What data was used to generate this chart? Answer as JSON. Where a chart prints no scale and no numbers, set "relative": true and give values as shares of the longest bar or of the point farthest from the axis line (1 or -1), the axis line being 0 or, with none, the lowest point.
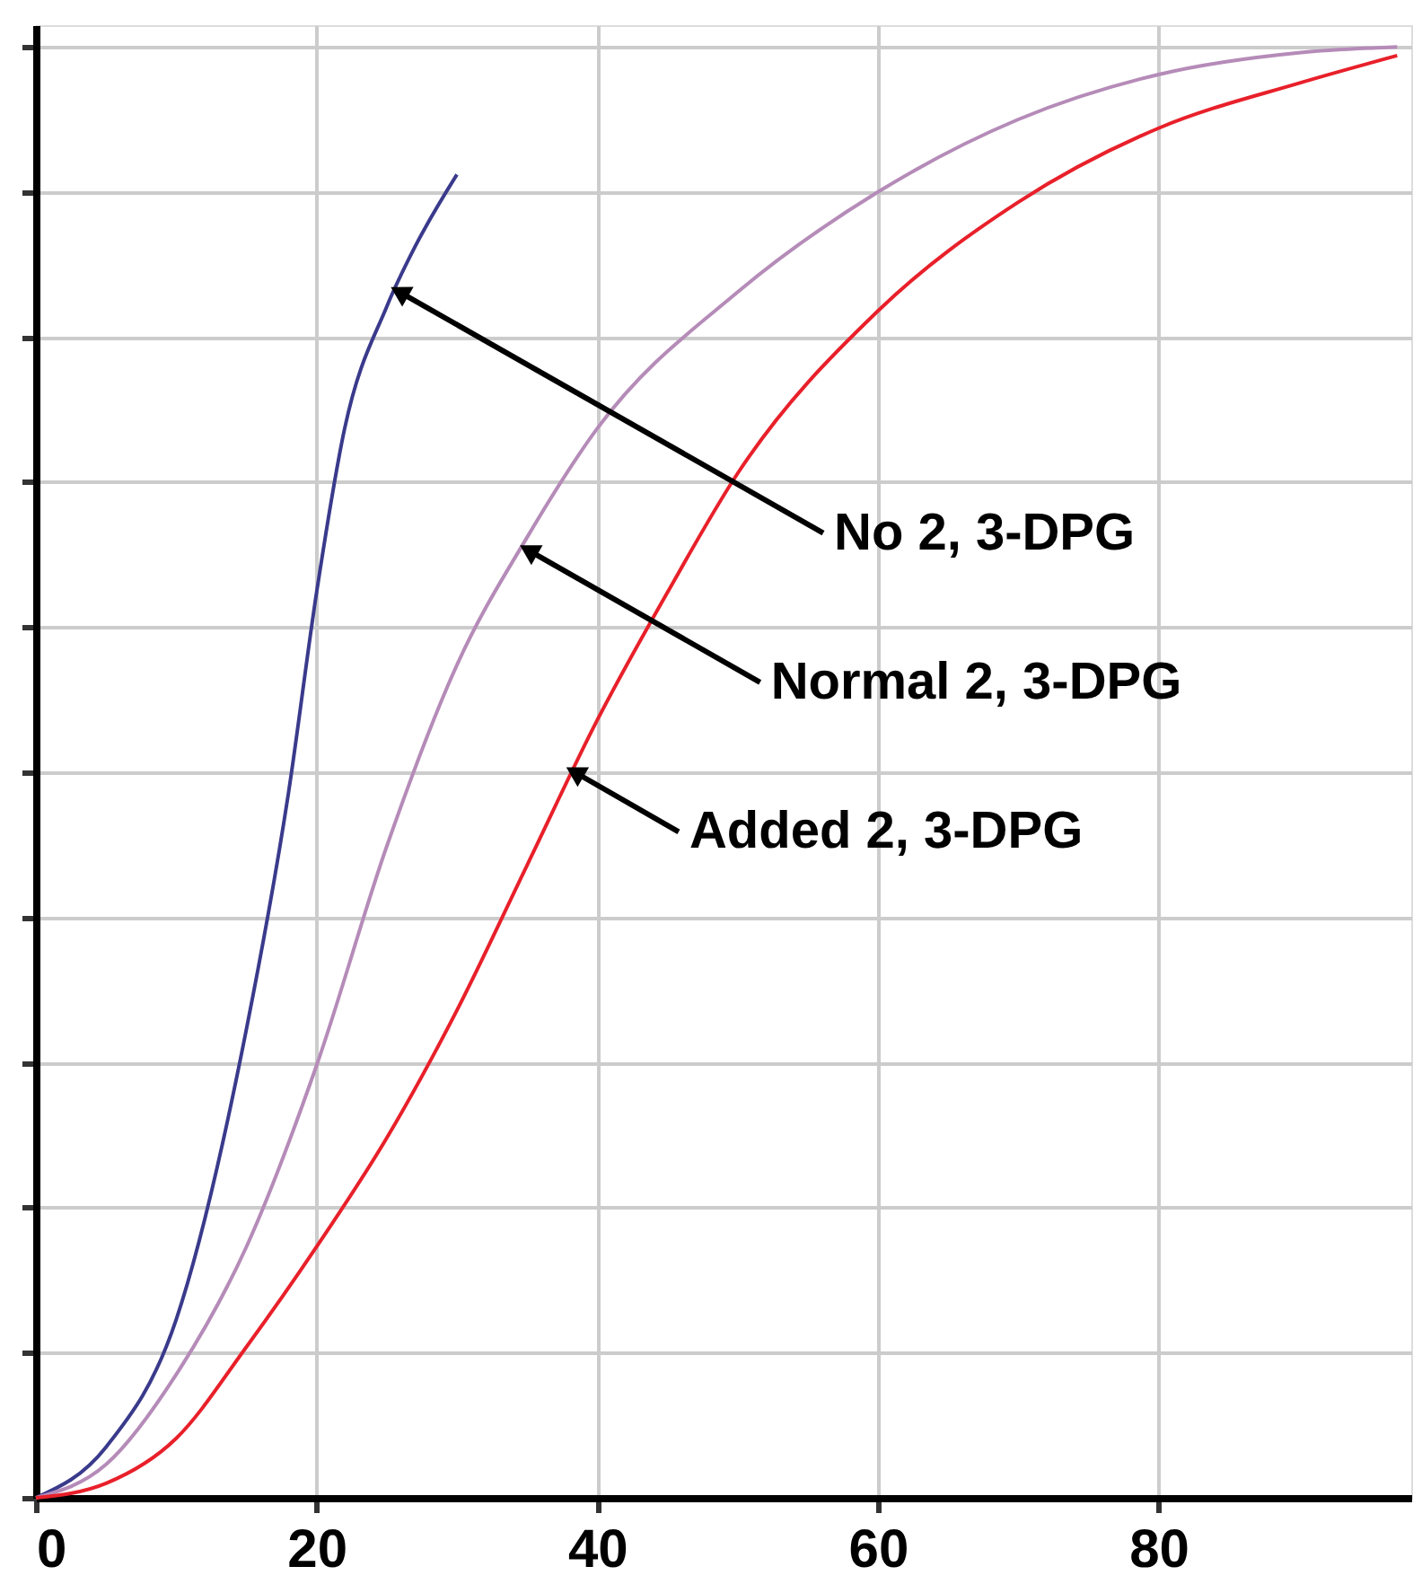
{
  "chart_data": {
    "type": "line",
    "relative": true,
    "xlim": [
      0,
      98
    ],
    "xticks": [
      0,
      20,
      40,
      60,
      80
    ],
    "grid": true,
    "marker": "none",
    "line_style": "solid",
    "series": [
      {
        "color": "#3a3a8c",
        "x": [
          0,
          5,
          10,
          15,
          18,
          20,
          22,
          25,
          27,
          30
        ],
        "values": [
          0,
          0.035,
          0.123,
          0.323,
          0.486,
          0.624,
          0.737,
          0.821,
          0.862,
          0.912
        ]
      },
      {
        "color": "#b58bb8",
        "x": [
          0,
          5,
          10,
          15,
          20,
          25,
          30,
          35,
          40,
          50,
          60,
          70,
          80,
          90,
          97
        ],
        "values": [
          0,
          0.023,
          0.085,
          0.173,
          0.298,
          0.449,
          0.574,
          0.662,
          0.737,
          0.831,
          0.9,
          0.95,
          0.981,
          0.996,
          1
        ]
      },
      {
        "color": "#e8202a",
        "x": [
          0,
          5,
          10,
          15,
          20,
          25,
          30,
          35,
          40,
          45,
          50,
          60,
          70,
          80,
          90,
          97
        ],
        "values": [
          0,
          0.01,
          0.041,
          0.104,
          0.173,
          0.248,
          0.336,
          0.436,
          0.536,
          0.624,
          0.706,
          0.818,
          0.893,
          0.944,
          0.975,
          0.994
        ]
      }
    ],
    "annotations": [
      {
        "text": "No 2, 3-DPG",
        "x": 26.1,
        "y": 0.83
      },
      {
        "text": "Normal 2, 3-DPG",
        "x": 35.3,
        "y": 0.652
      },
      {
        "text": "Added 2, 3-DPG",
        "x": 38.6,
        "y": 0.499
      }
    ]
  }
}
